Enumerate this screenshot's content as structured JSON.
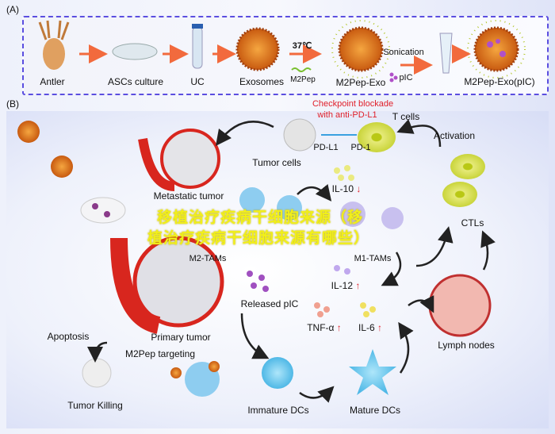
{
  "panel_a": {
    "label": "(A)",
    "steps": [
      "Antler",
      "ASCs culture",
      "UC",
      "Exosomes",
      "M2Pep-Exo",
      "M2Pep-Exo(pIC)"
    ],
    "temp": "37℃",
    "peptide": "M2Pep",
    "sonication": "Sonication",
    "pic": "pIC"
  },
  "panel_b": {
    "label": "(B)",
    "checkpoint_line1": "Checkpoint blockade",
    "checkpoint_line2": "with anti-PD-L1",
    "t_cells": "T cells",
    "pd_l1": "PD-L1",
    "pd_1": "PD-1",
    "tumor_cells": "Tumor cells",
    "activation": "Activation",
    "metastatic_tumor": "Metastatic tumor",
    "il10": "IL-10",
    "ctls": "CTLs",
    "m2_tams": "M2-TAMs",
    "m1_tams": "M1-TAMs",
    "il12": "IL-12",
    "released_pic": "Released pIC",
    "tnf": "TNF-α",
    "il6": "IL-6",
    "apoptosis": "Apoptosis",
    "primary_tumor": "Primary tumor",
    "lymph_nodes": "Lymph nodes",
    "m2pep_targeting": "M2Pep targeting",
    "tumor_killing": "Tumor Killing",
    "immature_dcs": "Immature DCs",
    "mature_dcs": "Mature DCs",
    "up_arrow": "↑",
    "down_arrow": "↓"
  },
  "watermark": {
    "line1": "移植治疗疾病干细胞来源（移",
    "line2": "植治疗疾病干细胞来源有哪些）"
  },
  "colors": {
    "dashed_box": "#5b4ee0",
    "arrow_orange": "#f26a3d",
    "highlight_red": "#e0202a",
    "watermark": "#f1ef1a",
    "tumor_red": "#d8261e",
    "dc_blue": "#5cc3ea",
    "tcell_yellow": "#c9d43a"
  }
}
